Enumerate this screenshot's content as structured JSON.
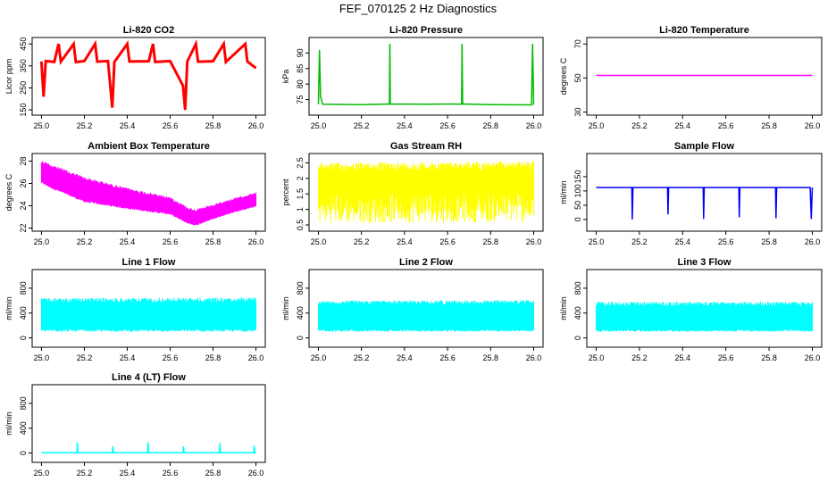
{
  "page_title": "FEF_070125  2 Hz Diagnostics",
  "chart_data": [
    {
      "id": "co2",
      "type": "line",
      "title": "Li-820 CO2",
      "xlabel": "",
      "ylabel": "Licor ppm",
      "color": "#ff0000",
      "xlim": [
        25.0,
        26.0
      ],
      "ylim": [
        140,
        465
      ],
      "yticks": [
        150,
        250,
        350,
        450
      ],
      "xticks": [
        25.0,
        25.2,
        25.4,
        25.6,
        25.8,
        26.0
      ],
      "series": [
        {
          "values": [
            [
              25.0,
              370
            ],
            [
              25.01,
              210
            ],
            [
              25.02,
              372
            ],
            [
              25.06,
              368
            ],
            [
              25.08,
              450
            ],
            [
              25.09,
              369
            ],
            [
              25.15,
              450
            ],
            [
              25.16,
              367
            ],
            [
              25.2,
              372
            ],
            [
              25.25,
              450
            ],
            [
              25.26,
              369
            ],
            [
              25.31,
              372
            ],
            [
              25.33,
              160
            ],
            [
              25.34,
              368
            ],
            [
              25.4,
              450
            ],
            [
              25.41,
              370
            ],
            [
              25.5,
              371
            ],
            [
              25.52,
              450
            ],
            [
              25.53,
              368
            ],
            [
              25.6,
              372
            ],
            [
              25.66,
              260
            ],
            [
              25.67,
              150
            ],
            [
              25.68,
              370
            ],
            [
              25.72,
              450
            ],
            [
              25.73,
              369
            ],
            [
              25.8,
              371
            ],
            [
              25.85,
              450
            ],
            [
              25.86,
              368
            ],
            [
              25.95,
              450
            ],
            [
              25.96,
              370
            ],
            [
              26.0,
              340
            ]
          ]
        }
      ]
    },
    {
      "id": "pressure",
      "type": "line",
      "title": "Li-820 Pressure",
      "xlabel": "",
      "ylabel": "kPa",
      "color": "#00bb00",
      "xlim": [
        25.0,
        26.0
      ],
      "ylim": [
        71,
        94
      ],
      "yticks": [
        75,
        80,
        85,
        90
      ],
      "xticks": [
        25.0,
        25.2,
        25.4,
        25.6,
        25.8,
        26.0
      ],
      "series": [
        {
          "values": [
            [
              25.0,
              73.5
            ],
            [
              25.005,
              91
            ],
            [
              25.01,
              76
            ],
            [
              25.02,
              73.5
            ],
            [
              25.2,
              73.4
            ],
            [
              25.33,
              73.6
            ],
            [
              25.332,
              93
            ],
            [
              25.334,
              73.6
            ],
            [
              25.5,
              73.5
            ],
            [
              25.665,
              73.6
            ],
            [
              25.667,
              93
            ],
            [
              25.67,
              73.6
            ],
            [
              25.8,
              73.4
            ],
            [
              25.99,
              73.3
            ],
            [
              25.995,
              93
            ],
            [
              26.0,
              73.3
            ]
          ]
        }
      ]
    },
    {
      "id": "temp",
      "type": "line",
      "title": "Li-820 Temperature",
      "xlabel": "",
      "ylabel": "degrees C",
      "color": "#ff00ff",
      "xlim": [
        25.0,
        26.0
      ],
      "ylim": [
        30,
        72
      ],
      "yticks": [
        30,
        50,
        70
      ],
      "xticks": [
        25.0,
        25.2,
        25.4,
        25.6,
        25.8,
        26.0
      ],
      "series": [
        {
          "values": [
            [
              25.0,
              51.5
            ],
            [
              26.0,
              51.5
            ]
          ]
        }
      ]
    },
    {
      "id": "ambient",
      "type": "area",
      "title": "Ambient Box Temperature",
      "xlabel": "",
      "ylabel": "degrees C",
      "color": "#ff00ff",
      "xlim": [
        25.0,
        26.0
      ],
      "ylim": [
        22,
        28.4
      ],
      "yticks": [
        22,
        24,
        26,
        28
      ],
      "xticks": [
        25.0,
        25.2,
        25.4,
        25.6,
        25.8,
        26.0
      ],
      "series": [
        {
          "name": "max",
          "values": [
            [
              25.0,
              28.1
            ],
            [
              25.05,
              27.7
            ],
            [
              25.2,
              26.6
            ],
            [
              25.4,
              25.6
            ],
            [
              25.6,
              24.8
            ],
            [
              25.68,
              23.9
            ],
            [
              25.72,
              23.7
            ],
            [
              25.8,
              24.1
            ],
            [
              25.9,
              24.7
            ],
            [
              26.0,
              25.2
            ]
          ]
        },
        {
          "name": "min",
          "values": [
            [
              25.0,
              26.0
            ],
            [
              25.05,
              25.5
            ],
            [
              25.2,
              24.3
            ],
            [
              25.4,
              23.7
            ],
            [
              25.6,
              23.2
            ],
            [
              25.68,
              22.4
            ],
            [
              25.72,
              22.2
            ],
            [
              25.8,
              22.8
            ],
            [
              25.9,
              23.4
            ],
            [
              26.0,
              23.9
            ]
          ]
        }
      ]
    },
    {
      "id": "rh",
      "type": "area",
      "title": "Gas Stream RH",
      "xlabel": "",
      "ylabel": "percent",
      "color": "#ffff00",
      "xlim": [
        25.0,
        26.0
      ],
      "ylim": [
        0.4,
        2.7
      ],
      "yticks": [
        0.5,
        1.0,
        1.5,
        2.0,
        2.5
      ],
      "xticks": [
        25.0,
        25.2,
        25.4,
        25.6,
        25.8,
        26.0
      ],
      "series": [
        {
          "name": "max",
          "values": [
            [
              25.0,
              2.5
            ],
            [
              26.0,
              2.55
            ]
          ]
        },
        {
          "name": "min",
          "values": [
            [
              25.0,
              0.55
            ],
            [
              26.0,
              0.6
            ]
          ]
        }
      ]
    },
    {
      "id": "sample",
      "type": "line",
      "title": "Sample Flow",
      "xlabel": "",
      "ylabel": "ml/min",
      "color": "#0000ff",
      "xlim": [
        25.0,
        26.0
      ],
      "ylim": [
        -30,
        220
      ],
      "yticks": [
        0,
        50,
        100,
        150
      ],
      "xticks": [
        25.0,
        25.2,
        25.4,
        25.6,
        25.8,
        26.0
      ],
      "series": [
        {
          "values": [
            [
              25.0,
              112
            ],
            [
              25.165,
              112
            ],
            [
              25.167,
              0
            ],
            [
              25.17,
              112
            ],
            [
              25.33,
              112
            ],
            [
              25.332,
              18
            ],
            [
              25.335,
              112
            ],
            [
              25.495,
              112
            ],
            [
              25.497,
              2
            ],
            [
              25.5,
              112
            ],
            [
              25.66,
              112
            ],
            [
              25.662,
              8
            ],
            [
              25.665,
              112
            ],
            [
              25.83,
              112
            ],
            [
              25.832,
              4
            ],
            [
              25.835,
              112
            ],
            [
              25.99,
              112
            ],
            [
              25.995,
              2
            ],
            [
              26.0,
              112
            ]
          ]
        }
      ]
    },
    {
      "id": "line1",
      "type": "area",
      "title": "Line 1 Flow",
      "xlabel": "",
      "ylabel": "ml/min",
      "color": "#00ffff",
      "xlim": [
        25.0,
        26.0
      ],
      "ylim": [
        -100,
        1050
      ],
      "yticks": [
        0,
        400,
        800
      ],
      "xticks": [
        25.0,
        25.2,
        25.4,
        25.6,
        25.8,
        26.0
      ],
      "series": [
        {
          "name": "max",
          "values": [
            [
              25.0,
              640
            ],
            [
              26.0,
              650
            ]
          ]
        },
        {
          "name": "min",
          "values": [
            [
              25.0,
              100
            ],
            [
              26.0,
              100
            ]
          ]
        }
      ]
    },
    {
      "id": "line2",
      "type": "area",
      "title": "Line 2 Flow",
      "xlabel": "",
      "ylabel": "ml/min",
      "color": "#00ffff",
      "xlim": [
        25.0,
        26.0
      ],
      "ylim": [
        -100,
        1050
      ],
      "yticks": [
        0,
        400,
        800
      ],
      "xticks": [
        25.0,
        25.2,
        25.4,
        25.6,
        25.8,
        26.0
      ],
      "series": [
        {
          "name": "max",
          "values": [
            [
              25.0,
              600
            ],
            [
              26.0,
              610
            ]
          ]
        },
        {
          "name": "min",
          "values": [
            [
              25.0,
              100
            ],
            [
              26.0,
              100
            ]
          ]
        }
      ]
    },
    {
      "id": "line3",
      "type": "area",
      "title": "Line 3 Flow",
      "xlabel": "",
      "ylabel": "ml/min",
      "color": "#00ffff",
      "xlim": [
        25.0,
        26.0
      ],
      "ylim": [
        -100,
        1050
      ],
      "yticks": [
        0,
        400,
        800
      ],
      "xticks": [
        25.0,
        25.2,
        25.4,
        25.6,
        25.8,
        26.0
      ],
      "series": [
        {
          "name": "max",
          "values": [
            [
              25.0,
              580
            ],
            [
              26.0,
              580
            ]
          ]
        },
        {
          "name": "min",
          "values": [
            [
              25.0,
              100
            ],
            [
              26.0,
              100
            ]
          ]
        }
      ]
    },
    {
      "id": "line4",
      "type": "line",
      "title": "Line 4 (LT) Flow",
      "xlabel": "",
      "ylabel": "ml/min",
      "color": "#00ffff",
      "xlim": [
        25.0,
        26.0
      ],
      "ylim": [
        -100,
        1050
      ],
      "yticks": [
        0,
        400,
        800
      ],
      "xticks": [
        25.0,
        25.2,
        25.4,
        25.6,
        25.8,
        26.0
      ],
      "series": [
        {
          "values": [
            [
              25.0,
              5
            ],
            [
              25.165,
              5
            ],
            [
              25.167,
              170
            ],
            [
              25.17,
              5
            ],
            [
              25.33,
              5
            ],
            [
              25.332,
              110
            ],
            [
              25.335,
              5
            ],
            [
              25.495,
              5
            ],
            [
              25.497,
              175
            ],
            [
              25.5,
              5
            ],
            [
              25.66,
              5
            ],
            [
              25.662,
              110
            ],
            [
              25.665,
              5
            ],
            [
              25.83,
              5
            ],
            [
              25.832,
              160
            ],
            [
              25.835,
              5
            ],
            [
              25.99,
              5
            ],
            [
              25.992,
              120
            ],
            [
              25.995,
              5
            ],
            [
              26.0,
              5
            ]
          ]
        }
      ]
    }
  ]
}
